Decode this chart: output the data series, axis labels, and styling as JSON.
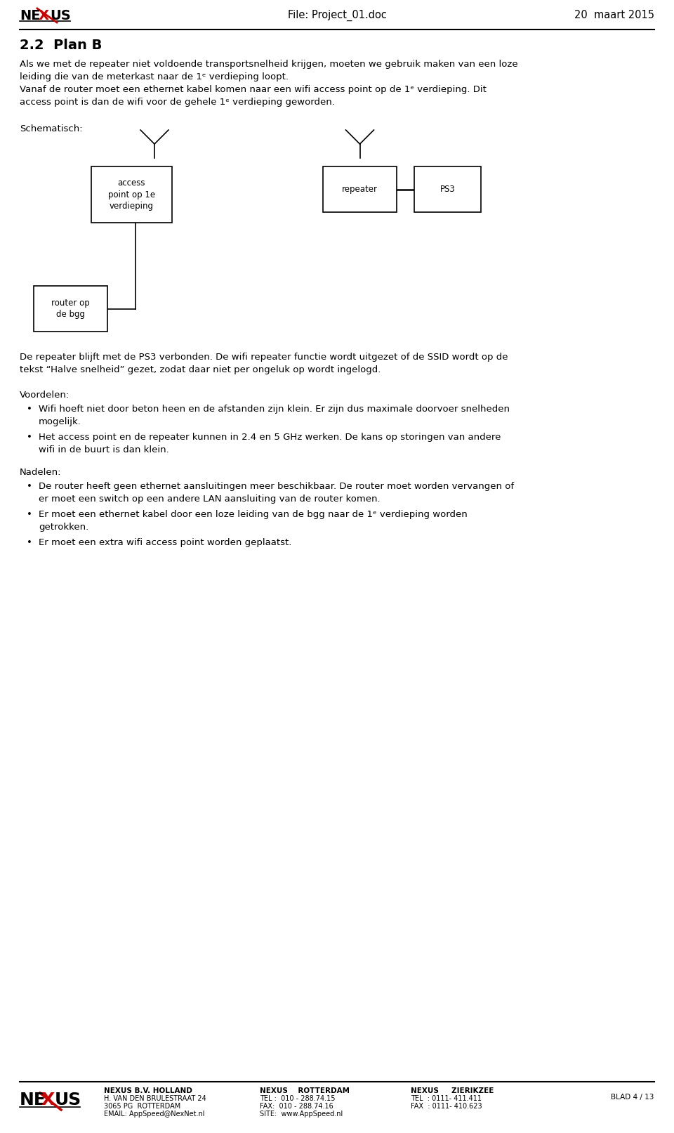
{
  "bg_color": "#ffffff",
  "header_file": "File: Project_01.doc",
  "header_date": "20  maart 2015",
  "title": "2.2  Plan B",
  "para1": [
    "Als we met de repeater niet voldoende transportsnelheid krijgen, moeten we gebruik maken van een loze",
    "leiding die van de meterkast naar de 1ᵉ verdieping loopt.",
    "Vanaf de router moet een ethernet kabel komen naar een wifi access point op de 1ᵉ verdieping. Dit",
    "access point is dan de wifi voor de gehele 1ᵉ verdieping geworden."
  ],
  "schematisch_label": "Schematisch:",
  "box_access_text": "access\npoint op 1e\nverdieping",
  "box_repeater_text": "repeater",
  "box_ps3_text": "PS3",
  "box_router_text": "router op\nde bgg",
  "para2": [
    "De repeater blijft met de PS3 verbonden. De wifi repeater functie wordt uitgezet of de SSID wordt op de",
    "tekst “Halve snelheid” gezet, zodat daar niet per ongeluk op wordt ingelogd."
  ],
  "voordelen_title": "Voordelen:",
  "voordelen_bullets": [
    [
      "Wifi hoeft niet door beton heen en de afstanden zijn klein. Er zijn dus maximale doorvoer snelheden",
      "mogelijk."
    ],
    [
      "Het access point en de repeater kunnen in 2.4 en 5 GHz werken. De kans op storingen van andere",
      "wifi in de buurt is dan klein."
    ]
  ],
  "nadelen_title": "Nadelen:",
  "nadelen_bullets": [
    [
      "De router heeft geen ethernet aansluitingen meer beschikbaar. De router moet worden vervangen of",
      "er moet een switch op een andere LAN aansluiting van de router komen."
    ],
    [
      "Er moet een ethernet kabel door een loze leiding van de bgg naar de 1ᵉ verdieping worden",
      "getrokken."
    ],
    [
      "Er moet een extra wifi access point worden geplaatst."
    ]
  ],
  "footer_col1": [
    "NEXUS B.V. HOLLAND",
    "H. VAN DEN BRULESTRAAT 24",
    "3065 PG  ROTTERDAM",
    "EMAIL: AppSpeed@NexNet.nl"
  ],
  "footer_col2": [
    "NEXUS    ROTTERDAM",
    "TEL :  010 - 288.74.15",
    "FAX:  010 - 288.74.16",
    "SITE:  www.AppSpeed.nl"
  ],
  "footer_col3": [
    "NEXUS     ZIERIKZEE",
    "TEL  : 0111- 411.411",
    "FAX  : 0111- 410.623"
  ],
  "footer_blad": "BLAD 4 / 13"
}
